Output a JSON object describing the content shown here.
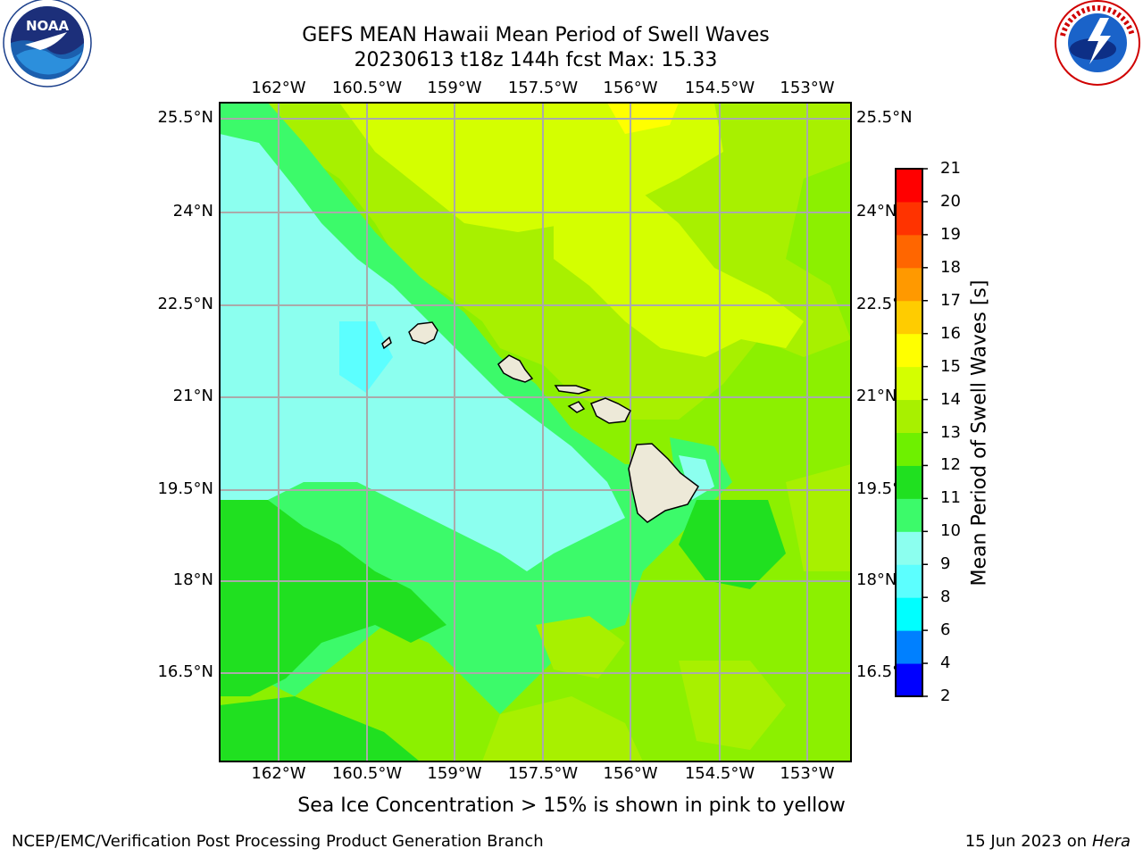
{
  "header": {
    "title_line1": "GEFS MEAN Hawaii Mean Period of Swell Waves",
    "title_line2": "20230613 t18z 144h fcst   Max: 15.33"
  },
  "logos": {
    "left": {
      "name": "noaa-logo",
      "text": "NOAA",
      "ring_text": "NATIONAL OCEANIC AND ATMOSPHERIC ADMINISTRATION · U.S. DEPARTMENT OF COMMERCE"
    },
    "right": {
      "name": "nws-logo",
      "ring_text": "NATIONAL WEATHER SERVICE"
    }
  },
  "map": {
    "lon_labels": [
      "162°W",
      "160.5°W",
      "159°W",
      "157.5°W",
      "156°W",
      "154.5°W",
      "153°W"
    ],
    "lat_labels": [
      "25.5°N",
      "24°N",
      "22.5°N",
      "21°N",
      "19.5°N",
      "18°N",
      "16.5°N"
    ],
    "colors": {
      "ocean_base": "#8cf000",
      "land": "#ede9d8",
      "coast": "#000000",
      "grid": "#aaaaaa"
    }
  },
  "colorbar": {
    "label": "Mean Period of Swell Waves [s]",
    "ticks": [
      "2",
      "4",
      "6",
      "8",
      "9",
      "10",
      "11",
      "12",
      "13",
      "14",
      "15",
      "16",
      "17",
      "18",
      "19",
      "20",
      "21"
    ],
    "colors": [
      "#0000ff",
      "#0080ff",
      "#00ffff",
      "#5cffff",
      "#8cffef",
      "#3cfa6a",
      "#20e020",
      "#6ef000",
      "#a8f000",
      "#d4ff00",
      "#ffff00",
      "#ffcc00",
      "#ff9900",
      "#ff6600",
      "#ff3300",
      "#ff0000"
    ]
  },
  "caption": "Sea Ice Concentration > 15% is shown in pink to yellow",
  "footer": {
    "left": "NCEP/EMC/Verification Post Processing Product Generation Branch",
    "right_date": "15 Jun 2023 on",
    "right_host": "Hera"
  }
}
